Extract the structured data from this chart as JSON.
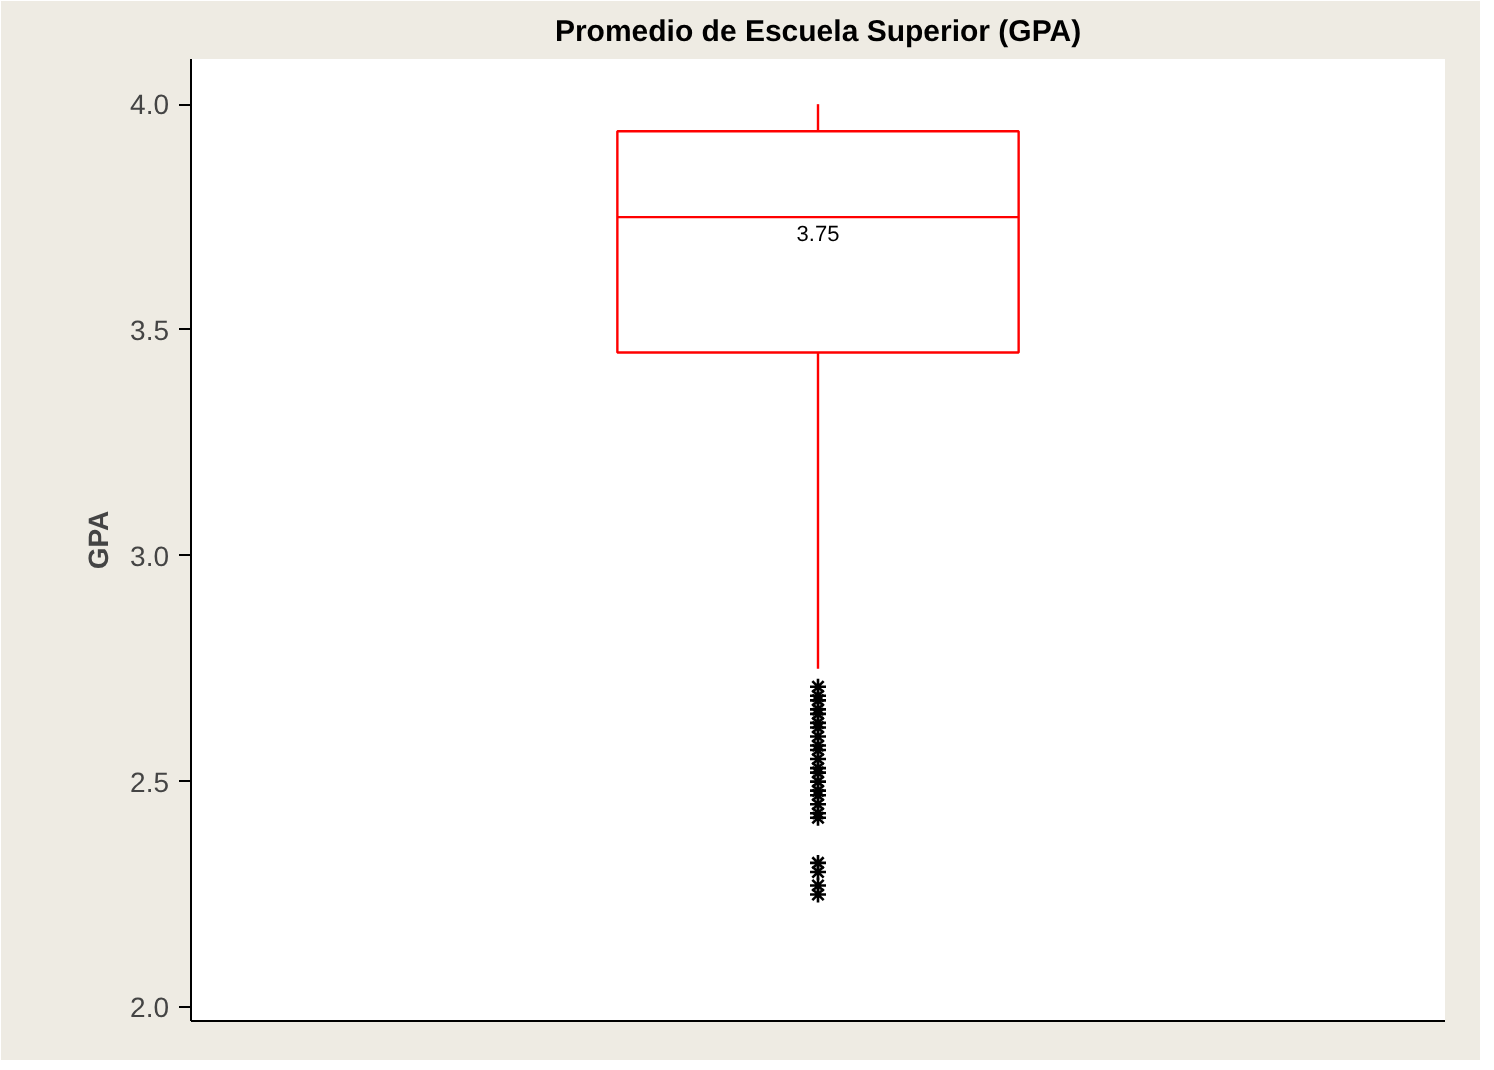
{
  "chart_data": {
    "type": "box",
    "title": "Promedio de Escuela Superior (GPA)",
    "ylabel": "GPA",
    "categories": [
      null
    ],
    "boxes": [
      {
        "low": 2.75,
        "q1": 3.45,
        "median": 3.75,
        "q3": 3.94,
        "high": 4.0,
        "outliers": [
          2.71,
          2.69,
          2.68,
          2.66,
          2.65,
          2.63,
          2.62,
          2.6,
          2.58,
          2.57,
          2.55,
          2.53,
          2.52,
          2.5,
          2.48,
          2.47,
          2.45,
          2.43,
          2.42,
          2.32,
          2.3,
          2.27,
          2.25
        ]
      }
    ],
    "color": "#ff0000",
    "annotations": [
      {
        "text": "3.75",
        "y": 3.75
      }
    ],
    "ylim": [
      1.97,
      4.1
    ],
    "yticks": [
      {
        "value": 2,
        "label": "2.0"
      },
      2.5,
      {
        "value": 3,
        "label": "3.0"
      },
      3.5,
      {
        "value": 4,
        "label": "4.0"
      }
    ],
    "tick_labels": "y",
    "grid": false,
    "marker": "star"
  }
}
